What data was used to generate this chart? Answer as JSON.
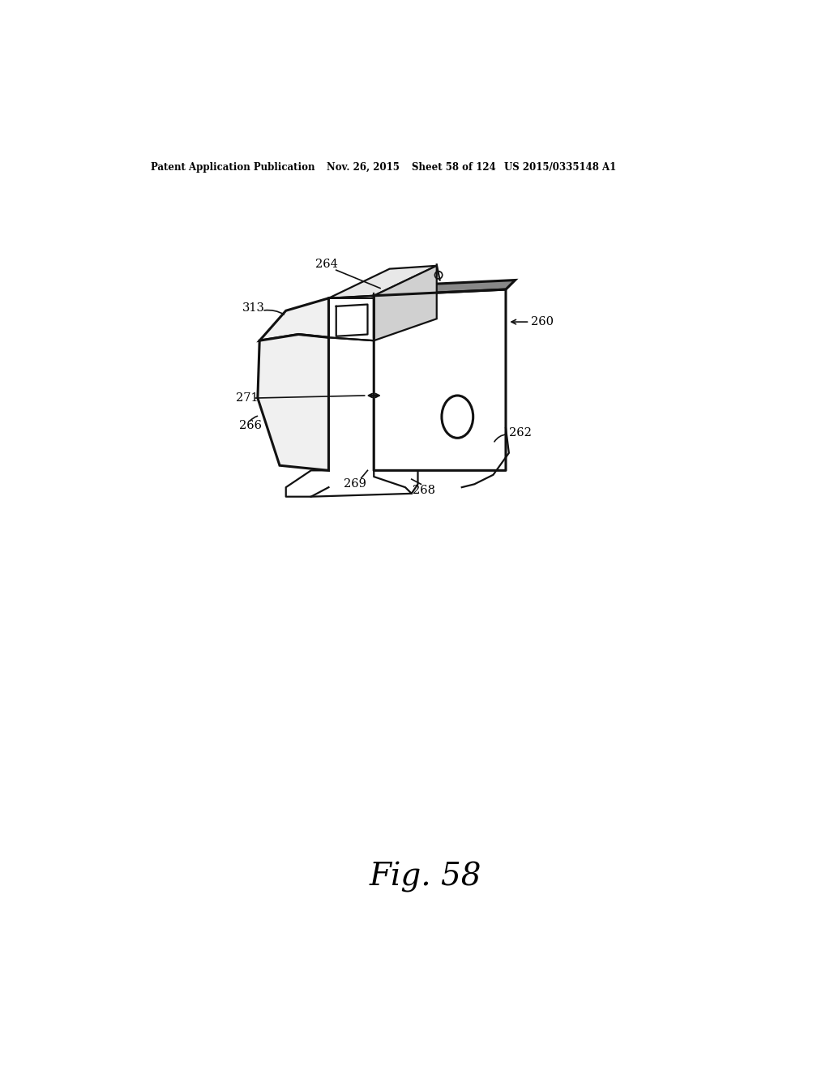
{
  "bg_color": "#ffffff",
  "header_text": "Patent Application Publication",
  "header_date": "Nov. 26, 2015",
  "header_sheet": "Sheet 58 of 124",
  "header_patent": "US 2015/0335148 A1",
  "fig_label": "Fig. 58",
  "line_color": "#111111",
  "lw": 1.6,
  "lw_thick": 2.2,
  "label_fontsize": 10.5,
  "header_fontsize": 8.5
}
